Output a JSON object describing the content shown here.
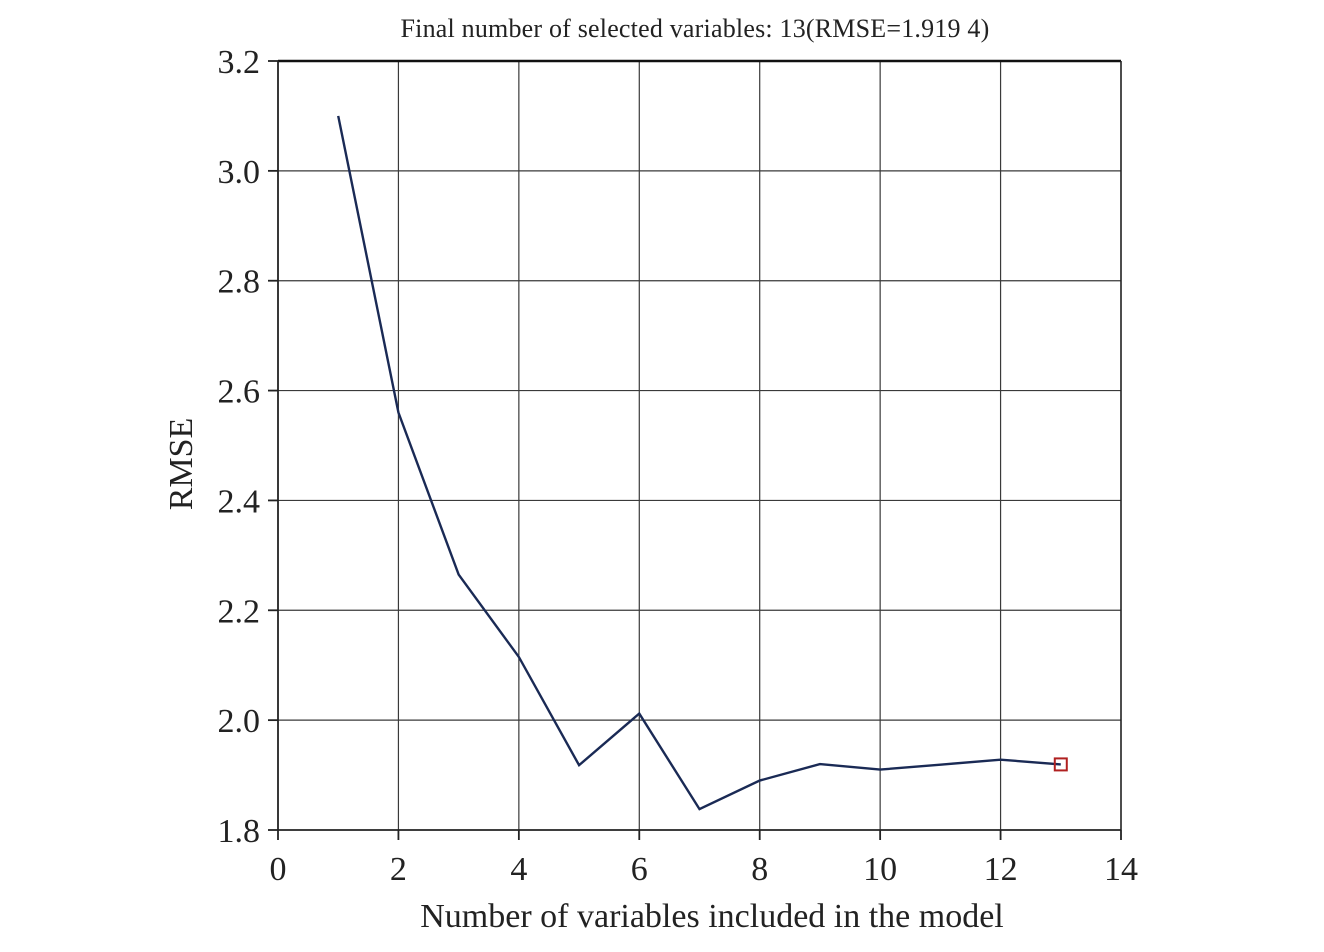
{
  "chart_data": {
    "type": "line",
    "title": "Final number of selected variables: 13(RMSE=1.919 4)",
    "xlabel": "Number of variables included in the model",
    "ylabel": "RMSE",
    "xlim": [
      0,
      14
    ],
    "ylim": [
      1.8,
      3.2
    ],
    "xticks": [
      0,
      2,
      4,
      6,
      8,
      10,
      12,
      14
    ],
    "yticks": [
      1.8,
      2.0,
      2.2,
      2.4,
      2.6,
      2.8,
      3.0,
      3.2
    ],
    "xtick_labels": [
      "0",
      "2",
      "4",
      "6",
      "8",
      "10",
      "12",
      "14"
    ],
    "ytick_labels": [
      "1.8",
      "2.0",
      "2.2",
      "2.4",
      "2.6",
      "2.8",
      "3.0",
      "3.2"
    ],
    "grid": true,
    "series": [
      {
        "x": [
          1,
          2,
          3,
          4,
          5,
          6,
          7,
          8,
          9,
          10,
          11,
          12,
          13
        ],
        "values": [
          3.1,
          2.56,
          2.265,
          2.115,
          1.918,
          2.012,
          1.838,
          1.89,
          1.92,
          1.91,
          1.919,
          1.928,
          1.9194
        ],
        "color": "#1a2a55"
      }
    ],
    "highlight": {
      "x": 13,
      "y": 1.9194,
      "marker": "square",
      "color": "#b02020"
    }
  }
}
